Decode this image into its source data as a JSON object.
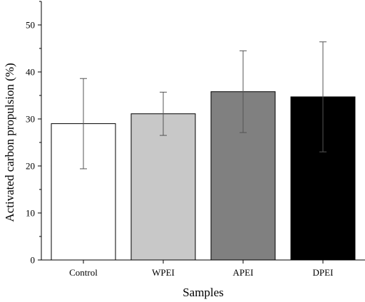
{
  "chart_data": {
    "type": "bar",
    "title": "",
    "xlabel": "Samples",
    "ylabel": "Activated carbon propulsion (%)",
    "categories": [
      "Control",
      "WPEI",
      "APEI",
      "DPEI"
    ],
    "values": [
      29.0,
      31.1,
      35.8,
      34.7
    ],
    "error_bars": [
      9.6,
      4.6,
      8.7,
      11.7
    ],
    "bar_colors": [
      "#ffffff",
      "#c8c8c8",
      "#808080",
      "#000000"
    ],
    "ylim": [
      0,
      55
    ],
    "yticks": [
      0,
      10,
      20,
      30,
      40,
      50
    ],
    "grid": false,
    "legend": "none"
  }
}
